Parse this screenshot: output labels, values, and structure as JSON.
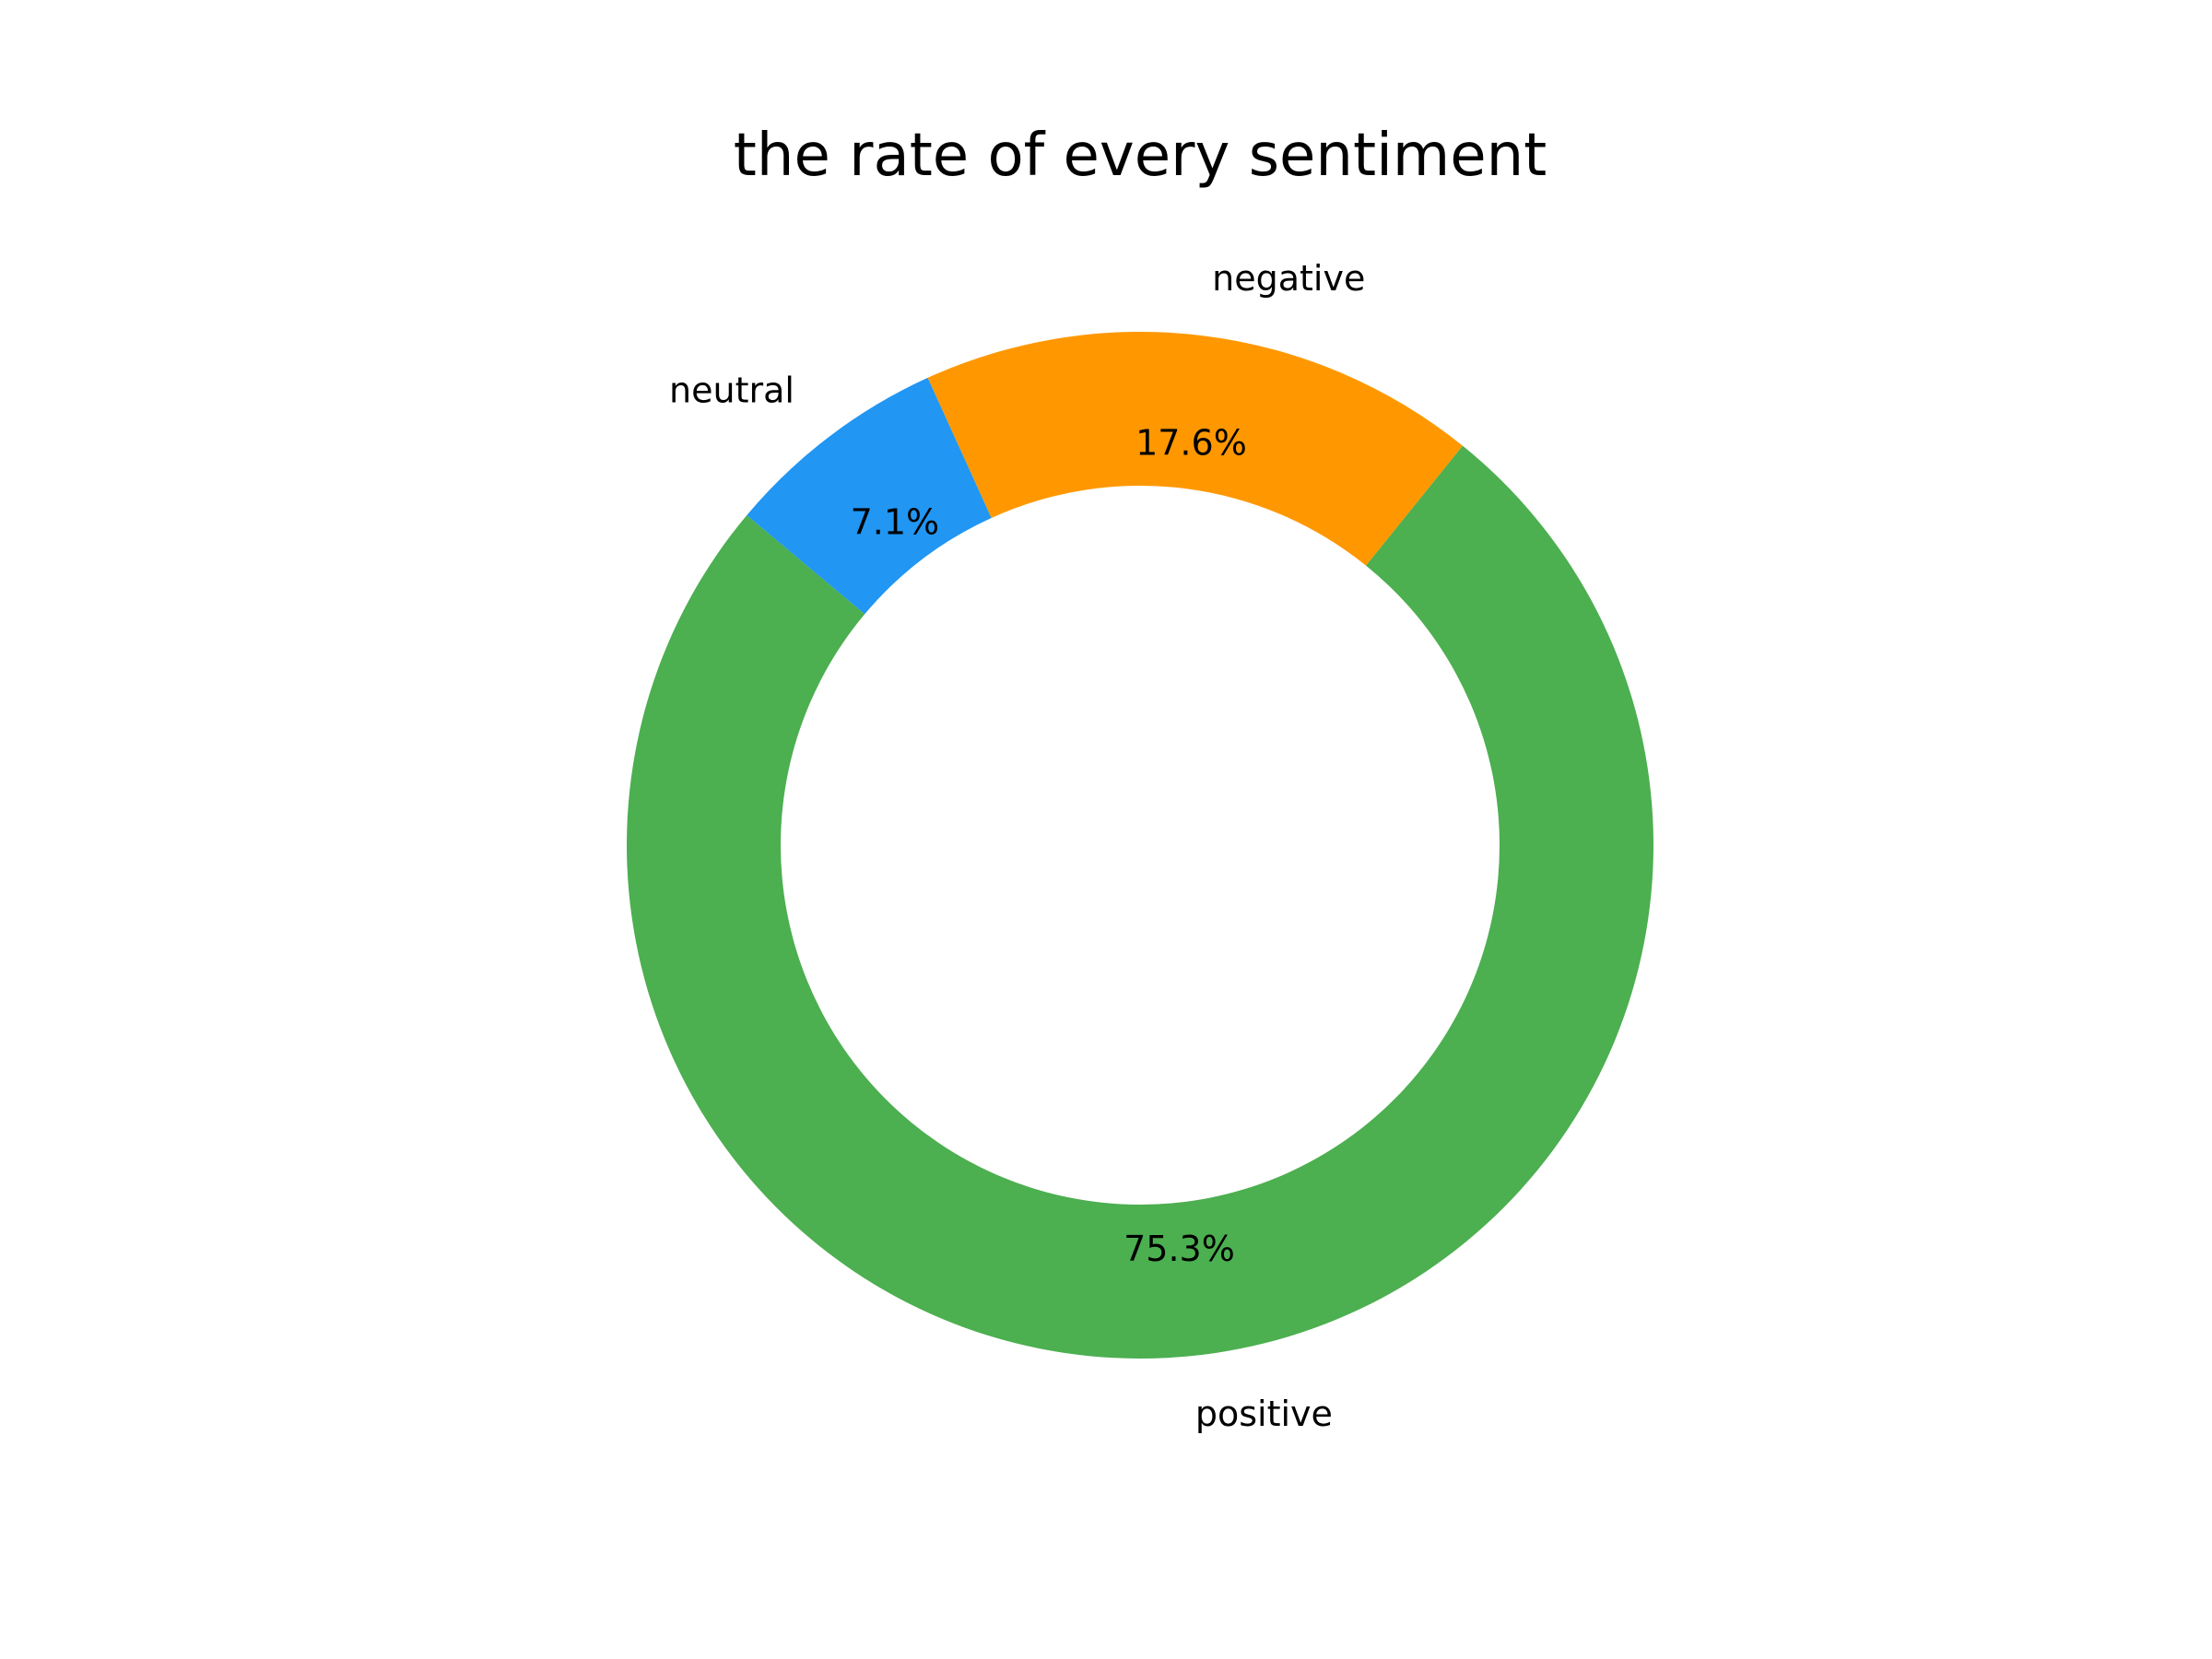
{
  "chart_data": {
    "type": "pie",
    "style": "donut",
    "title": "the rate of every sentiment",
    "slices": [
      {
        "label": "positive",
        "value": 75.3,
        "pct_label": "75.3%",
        "color": "#4caf50"
      },
      {
        "label": "negative",
        "value": 17.6,
        "pct_label": "17.6%",
        "color": "#ff9800"
      },
      {
        "label": "neutral",
        "value": 7.1,
        "pct_label": "7.1%",
        "color": "#2196f3"
      }
    ],
    "legend": "none"
  }
}
